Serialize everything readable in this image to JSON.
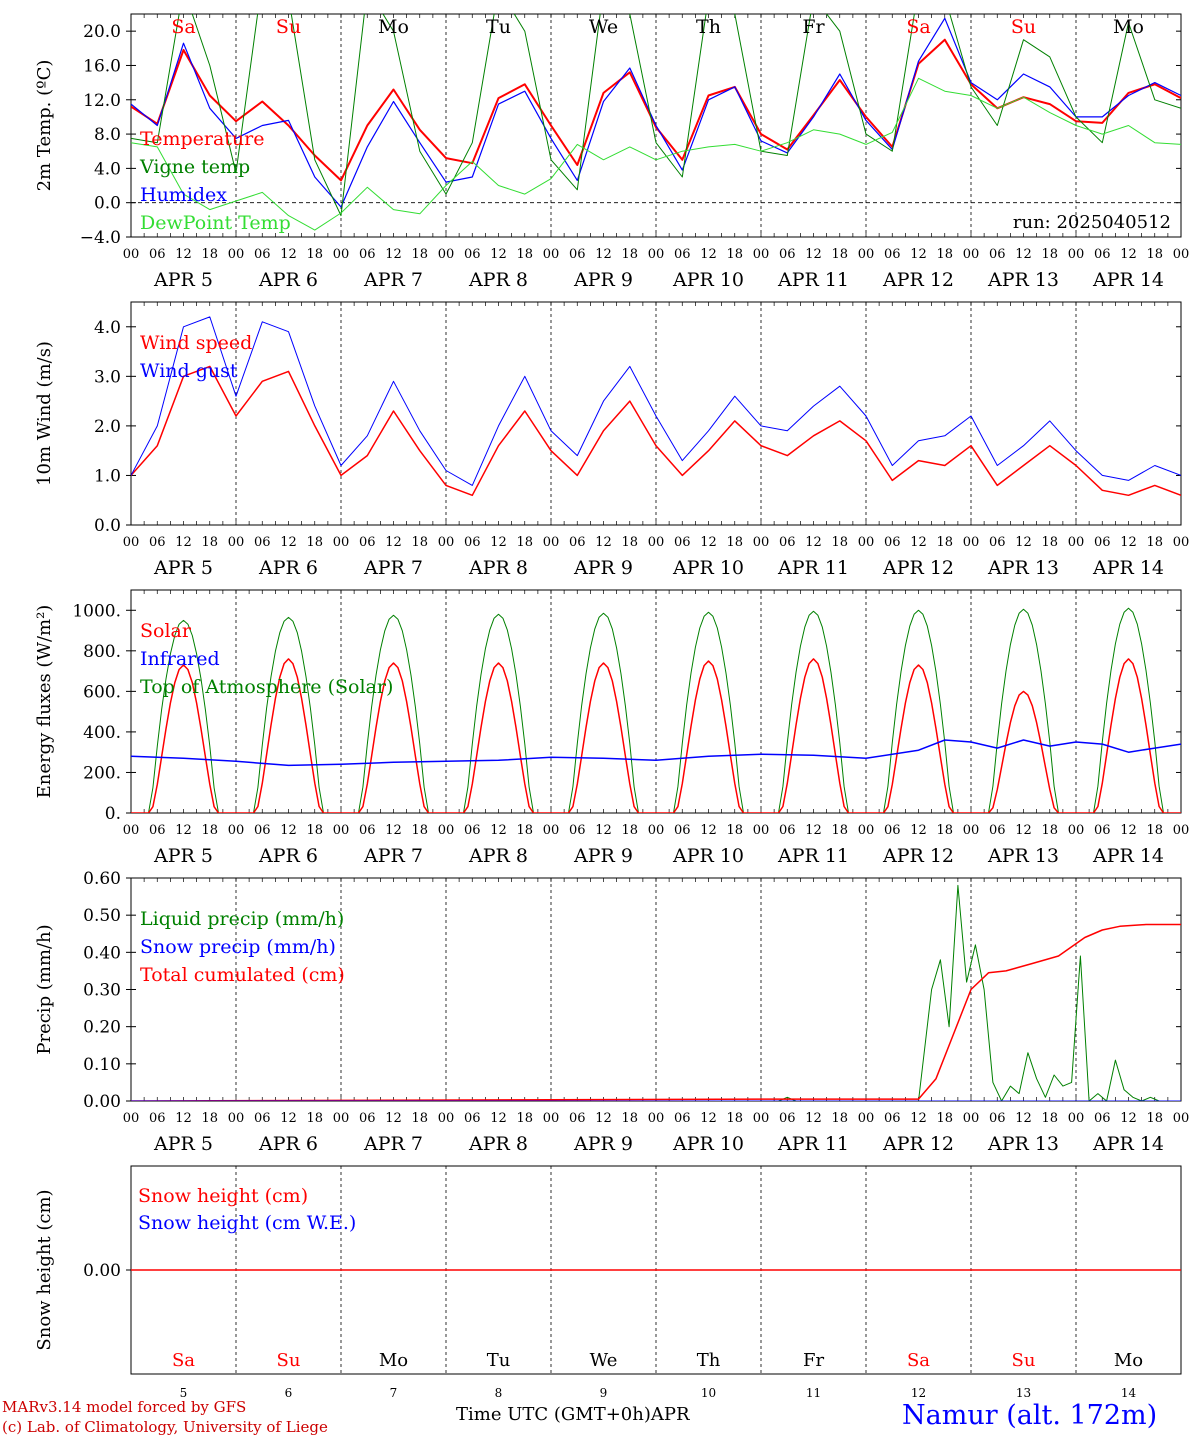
{
  "x_axis": {
    "hour_ticks": [
      "00",
      "06",
      "12",
      "18"
    ],
    "date_labels": [
      "APR  5",
      "APR  6",
      "APR  7",
      "APR  8",
      "APR  9",
      "APR 10",
      "APR 11",
      "APR 12",
      "APR 13",
      "APR 14"
    ],
    "day_numbers": [
      "5",
      "6",
      "7",
      "8",
      "9",
      "10",
      "11",
      "12",
      "13",
      "14"
    ],
    "weekdays": [
      {
        "label": "Sa",
        "color": "#ff0000"
      },
      {
        "label": "Su",
        "color": "#ff0000"
      },
      {
        "label": "Mo",
        "color": "#000000"
      },
      {
        "label": "Tu",
        "color": "#000000"
      },
      {
        "label": "We",
        "color": "#000000"
      },
      {
        "label": "Th",
        "color": "#000000"
      },
      {
        "label": "Fr",
        "color": "#000000"
      },
      {
        "label": "Sa",
        "color": "#ff0000"
      },
      {
        "label": "Su",
        "color": "#ff0000"
      },
      {
        "label": "Mo",
        "color": "#000000"
      }
    ],
    "bottom_label": "Time UTC (GMT+0h)",
    "month_label": "APR"
  },
  "footer": {
    "model_line": "MARv3.14 model forced by GFS",
    "copyright_line": "(c) Lab. of Climatology, University of Liege",
    "location": "Namur (alt. 172m)"
  },
  "colors": {
    "red": "#ff0000",
    "green": "#008000",
    "blue": "#0000ff",
    "lightgreen": "#33dd33",
    "footer_red": "#cc0000",
    "location_blue": "#0000ff"
  },
  "chart_data": [
    {
      "type": "line",
      "ylabel": "2m Temp. (ºC)",
      "ylim": [
        -4,
        22
      ],
      "yticks": [
        -4,
        0,
        4,
        8,
        12,
        16,
        20
      ],
      "ytick_labels": [
        "−4.0",
        "0.0",
        "4.0",
        "8.0",
        "12.0",
        "16.0",
        "20.0"
      ],
      "zero_line": true,
      "annotation": "run: 2025040512",
      "legend": [
        {
          "text": "Temperature",
          "color": "#ff0000"
        },
        {
          "text": "Vigne temp",
          "color": "#008000"
        },
        {
          "text": "Humidex",
          "color": "#0000ff"
        },
        {
          "text": "DewPoint Temp",
          "color": "#33dd33"
        }
      ],
      "x_hours": [
        0,
        6,
        12,
        18,
        24,
        30,
        36,
        42,
        48,
        54,
        60,
        66,
        72,
        78,
        84,
        90,
        96,
        102,
        108,
        114,
        120,
        126,
        132,
        138,
        144,
        150,
        156,
        162,
        168,
        174,
        180,
        186,
        192,
        198,
        204,
        210,
        216,
        222,
        228,
        234,
        240
      ],
      "series": [
        {
          "name": "Temperature",
          "color": "#ff0000",
          "width": 2,
          "values": [
            11.2,
            9.2,
            17.8,
            12.5,
            9.5,
            11.8,
            9.0,
            5.5,
            2.6,
            9.0,
            13.2,
            8.5,
            5.2,
            4.6,
            12.2,
            13.8,
            9.0,
            4.4,
            12.8,
            15.2,
            8.8,
            5.0,
            12.5,
            13.5,
            8.0,
            6.2,
            10.2,
            14.3,
            10.0,
            6.5,
            16.2,
            19.0,
            13.8,
            11.0,
            12.3,
            11.5,
            9.5,
            9.3,
            12.8,
            13.8,
            12.2
          ]
        },
        {
          "name": "Humidex",
          "color": "#0000ff",
          "width": 1.2,
          "values": [
            11.5,
            9.0,
            18.6,
            11.0,
            7.5,
            9.0,
            9.6,
            3.0,
            -0.5,
            6.5,
            11.8,
            7.0,
            2.4,
            3.0,
            11.5,
            13.0,
            7.5,
            2.6,
            11.8,
            15.7,
            9.0,
            3.8,
            12.0,
            13.5,
            7.2,
            5.8,
            10.0,
            15.0,
            9.6,
            6.2,
            16.5,
            21.5,
            14.0,
            12.0,
            15.0,
            13.5,
            10.0,
            10.0,
            12.5,
            14.0,
            12.5
          ]
        },
        {
          "name": "Vigne temp",
          "color": "#008000",
          "width": 1,
          "values": [
            7.5,
            7.0,
            25.0,
            16.0,
            3.5,
            26.0,
            24.0,
            5.0,
            -1.5,
            25.0,
            20.0,
            6.0,
            1.0,
            7.0,
            25.0,
            20.0,
            5.0,
            1.5,
            25.0,
            22.0,
            7.0,
            3.0,
            24.0,
            22.0,
            6.0,
            5.5,
            24.0,
            20.0,
            8.0,
            6.0,
            25.0,
            24.0,
            13.5,
            9.0,
            19.0,
            17.0,
            10.0,
            7.0,
            21.0,
            12.0,
            11.0
          ]
        },
        {
          "name": "DewPoint Temp",
          "color": "#33dd33",
          "width": 1,
          "values": [
            7.0,
            6.5,
            1.0,
            -0.8,
            0.2,
            1.2,
            -1.5,
            -3.2,
            -1.2,
            1.8,
            -0.8,
            -1.3,
            2.0,
            4.8,
            2.0,
            1.0,
            2.8,
            6.8,
            5.0,
            6.5,
            5.0,
            6.0,
            6.5,
            6.8,
            6.0,
            7.0,
            8.5,
            8.0,
            6.8,
            8.2,
            14.5,
            13.0,
            12.5,
            11.0,
            12.3,
            10.5,
            9.0,
            8.0,
            9.0,
            7.0,
            6.8
          ]
        }
      ]
    },
    {
      "type": "line",
      "ylabel": "10m Wind (m/s)",
      "ylim": [
        0,
        4.5
      ],
      "yticks": [
        0,
        1,
        2,
        3,
        4
      ],
      "ytick_labels": [
        "0.0",
        "1.0",
        "2.0",
        "3.0",
        "4.0"
      ],
      "legend": [
        {
          "text": "Wind speed",
          "color": "#ff0000"
        },
        {
          "text": "Wind gust",
          "color": "#0000ff"
        }
      ],
      "x_hours": [
        0,
        6,
        12,
        18,
        24,
        30,
        36,
        42,
        48,
        54,
        60,
        66,
        72,
        78,
        84,
        90,
        96,
        102,
        108,
        114,
        120,
        126,
        132,
        138,
        144,
        150,
        156,
        162,
        168,
        174,
        180,
        186,
        192,
        198,
        204,
        210,
        216,
        222,
        228,
        234,
        240
      ],
      "series": [
        {
          "name": "Wind speed",
          "color": "#ff0000",
          "width": 1.5,
          "values": [
            1.0,
            1.6,
            3.0,
            3.2,
            2.2,
            2.9,
            3.1,
            2.0,
            1.0,
            1.4,
            2.3,
            1.5,
            0.8,
            0.6,
            1.6,
            2.3,
            1.5,
            1.0,
            1.9,
            2.5,
            1.6,
            1.0,
            1.5,
            2.1,
            1.6,
            1.4,
            1.8,
            2.1,
            1.7,
            0.9,
            1.3,
            1.2,
            1.6,
            0.8,
            1.2,
            1.6,
            1.2,
            0.7,
            0.6,
            0.8,
            0.6
          ]
        },
        {
          "name": "Wind gust",
          "color": "#0000ff",
          "width": 1,
          "values": [
            1.0,
            2.0,
            4.0,
            4.2,
            2.6,
            4.1,
            3.9,
            2.4,
            1.2,
            1.8,
            2.9,
            1.9,
            1.1,
            0.8,
            2.0,
            3.0,
            1.9,
            1.4,
            2.5,
            3.2,
            2.2,
            1.3,
            1.9,
            2.6,
            2.0,
            1.9,
            2.4,
            2.8,
            2.2,
            1.2,
            1.7,
            1.8,
            2.2,
            1.2,
            1.6,
            2.1,
            1.5,
            1.0,
            0.9,
            1.2,
            1.0
          ]
        }
      ]
    },
    {
      "type": "line",
      "ylabel": "Energy fluxes (W/m²)",
      "ylim": [
        0,
        1100
      ],
      "yticks": [
        0,
        200,
        400,
        600,
        800,
        1000
      ],
      "ytick_labels": [
        "0.",
        "200.",
        "400.",
        "600.",
        "800.",
        "1000."
      ],
      "legend": [
        {
          "text": "Solar",
          "color": "#ff0000"
        },
        {
          "text": "Infrared",
          "color": "#0000ff"
        },
        {
          "text": "Top of Atmosphere (Solar)",
          "color": "#008000"
        }
      ],
      "diurnal": {
        "toa_peaks": [
          950,
          965,
          975,
          980,
          985,
          990,
          995,
          1000,
          1005,
          1010
        ],
        "solar_peaks": [
          730,
          760,
          740,
          740,
          740,
          750,
          760,
          730,
          600,
          760
        ],
        "rise_hour": 4.5,
        "set_hour": 19.5
      },
      "series": [
        {
          "name": "Infrared",
          "color": "#0000ff",
          "width": 1.5,
          "x_hours": [
            0,
            12,
            24,
            36,
            48,
            60,
            72,
            84,
            96,
            108,
            120,
            132,
            144,
            156,
            168,
            180,
            186,
            192,
            198,
            204,
            210,
            216,
            222,
            228,
            234,
            240
          ],
          "values": [
            280,
            270,
            255,
            235,
            240,
            250,
            255,
            260,
            275,
            270,
            260,
            280,
            290,
            285,
            270,
            310,
            360,
            350,
            320,
            360,
            330,
            350,
            340,
            300,
            320,
            340
          ]
        }
      ]
    },
    {
      "type": "line",
      "ylabel": "Precip (mm/h)",
      "ylim": [
        0,
        0.6
      ],
      "yticks": [
        0,
        0.1,
        0.2,
        0.3,
        0.4,
        0.5,
        0.6
      ],
      "ytick_labels": [
        "0.00",
        "0.10",
        "0.20",
        "0.30",
        "0.40",
        "0.50",
        "0.60"
      ],
      "legend": [
        {
          "text": "Liquid precip (mm/h)",
          "color": "#008000"
        },
        {
          "text": "Snow precip (mm/h)",
          "color": "#0000ff"
        },
        {
          "text": "Total cumulated (cm)",
          "color": "#ff0000"
        }
      ],
      "series": [
        {
          "name": "Liquid precip (mm/h)",
          "color": "#008000",
          "width": 1,
          "x_hours": [
            0,
            148,
            150,
            152,
            180,
            183,
            185,
            187,
            189,
            191,
            193,
            195,
            197,
            199,
            201,
            203,
            205,
            207,
            209,
            211,
            213,
            215,
            217,
            219,
            221,
            223,
            225,
            227,
            229,
            231,
            233,
            235,
            237,
            240
          ],
          "values": [
            0,
            0,
            0.01,
            0,
            0,
            0.3,
            0.38,
            0.2,
            0.58,
            0.32,
            0.42,
            0.3,
            0.05,
            0.0,
            0.04,
            0.02,
            0.13,
            0.06,
            0.01,
            0.07,
            0.04,
            0.05,
            0.39,
            0.0,
            0.02,
            0.0,
            0.11,
            0.03,
            0.01,
            0.0,
            0.01,
            0.0,
            0.0,
            0.0
          ]
        },
        {
          "name": "Total cumulated (cm)",
          "color": "#ff0000",
          "width": 1.5,
          "x_hours": [
            0,
            150,
            180,
            184,
            188,
            192,
            196,
            200,
            206,
            212,
            218,
            222,
            226,
            232,
            240
          ],
          "values": [
            0,
            0.005,
            0.005,
            0.06,
            0.18,
            0.3,
            0.345,
            0.35,
            0.37,
            0.39,
            0.44,
            0.46,
            0.47,
            0.475,
            0.475
          ]
        },
        {
          "name": "Snow precip (mm/h)",
          "color": "#0000ff",
          "width": 1,
          "x_hours": [
            0,
            240
          ],
          "values": [
            0,
            0
          ]
        }
      ]
    },
    {
      "type": "line",
      "ylabel": "Snow height (cm)",
      "ylim": [
        -1,
        1
      ],
      "yticks": [
        0
      ],
      "ytick_labels": [
        "0.00"
      ],
      "legend": [
        {
          "text": "Snow height (cm)",
          "color": "#ff0000"
        },
        {
          "text": "Snow height (cm W.E.)",
          "color": "#0000ff"
        }
      ],
      "series": [
        {
          "name": "Snow height (cm)",
          "color": "#ff0000",
          "width": 1.5,
          "x_hours": [
            0,
            240
          ],
          "values": [
            0,
            0
          ]
        }
      ]
    }
  ]
}
